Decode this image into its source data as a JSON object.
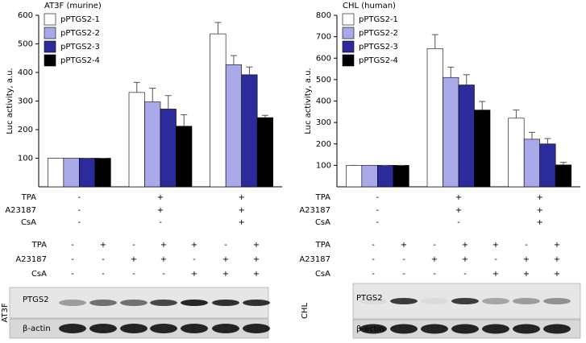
{
  "chart_data": [
    {
      "type": "bar",
      "title": "AT3F (murine)",
      "y_label": "Luc activity, a.u.",
      "categories": [
        null,
        null,
        null
      ],
      "series": [
        {
          "name": "pPTGS2-1",
          "color": "#ffffff",
          "values": [
            100,
            330,
            535
          ],
          "errors": [
            0,
            35,
            40
          ]
        },
        {
          "name": "pPTGS2-2",
          "color": "#a9a9e9",
          "values": [
            100,
            297,
            427
          ],
          "errors": [
            0,
            48,
            32
          ]
        },
        {
          "name": "pPTGS2-3",
          "color": "#2b2b9b",
          "values": [
            100,
            272,
            392
          ],
          "errors": [
            0,
            47,
            27
          ]
        },
        {
          "name": "pPTGS2-4",
          "color": "#000000",
          "values": [
            100,
            212,
            242
          ],
          "errors": [
            0,
            40,
            8
          ]
        }
      ],
      "ylim": [
        0,
        600
      ],
      "yticks": [
        100,
        200,
        300,
        400,
        500,
        600
      ],
      "legend": "upper-left",
      "conditions": [
        {
          "label": "TPA",
          "signs": [
            "-",
            "+",
            "+"
          ]
        },
        {
          "label": "A23187",
          "signs": [
            "-",
            "+",
            "+"
          ]
        },
        {
          "label": "CsA",
          "signs": [
            "-",
            "-",
            "+"
          ]
        }
      ]
    },
    {
      "type": "bar",
      "title": "CHL (human)",
      "y_label": "Luc activity, a.u.",
      "categories": [
        null,
        null,
        null
      ],
      "series": [
        {
          "name": "pPTGS2-1",
          "color": "#ffffff",
          "values": [
            100,
            645,
            320
          ],
          "errors": [
            0,
            65,
            38
          ]
        },
        {
          "name": "pPTGS2-2",
          "color": "#a9a9e9",
          "values": [
            100,
            510,
            222
          ],
          "errors": [
            0,
            48,
            32
          ]
        },
        {
          "name": "pPTGS2-3",
          "color": "#2b2b9b",
          "values": [
            100,
            475,
            200
          ],
          "errors": [
            0,
            48,
            25
          ]
        },
        {
          "name": "pPTGS2-4",
          "color": "#000000",
          "values": [
            100,
            358,
            102
          ],
          "errors": [
            0,
            40,
            12
          ]
        }
      ],
      "ylim": [
        0,
        800
      ],
      "yticks": [
        100,
        200,
        300,
        400,
        500,
        600,
        700,
        800
      ],
      "legend": "upper-left",
      "conditions": [
        {
          "label": "TPA",
          "signs": [
            "-",
            "+",
            "+"
          ]
        },
        {
          "label": "A23187",
          "signs": [
            "-",
            "+",
            "+"
          ]
        },
        {
          "label": "CsA",
          "signs": [
            "-",
            "-",
            "+"
          ]
        }
      ]
    }
  ],
  "blots": [
    {
      "cell_line": "AT3F",
      "bands": [
        "PTGS2",
        "β-actin"
      ],
      "conditions": [
        {
          "label": "TPA",
          "signs": [
            "-",
            "+",
            "-",
            "+",
            "+",
            "-",
            "+"
          ]
        },
        {
          "label": "A23187",
          "signs": [
            "-",
            "-",
            "+",
            "+",
            "-",
            "+",
            "+"
          ]
        },
        {
          "label": "CsA",
          "signs": [
            "-",
            "-",
            "-",
            "-",
            "+",
            "+",
            "+"
          ]
        }
      ]
    },
    {
      "cell_line": "CHL",
      "bands": [
        "PTGS2",
        "β-actin"
      ],
      "conditions": [
        {
          "label": "TPA",
          "signs": [
            "-",
            "+",
            "-",
            "+",
            "+",
            "-",
            "+"
          ]
        },
        {
          "label": "A23187",
          "signs": [
            "-",
            "-",
            "+",
            "+",
            "-",
            "+",
            "+"
          ]
        },
        {
          "label": "CsA",
          "signs": [
            "-",
            "-",
            "-",
            "-",
            "+",
            "+",
            "+"
          ]
        }
      ]
    }
  ]
}
